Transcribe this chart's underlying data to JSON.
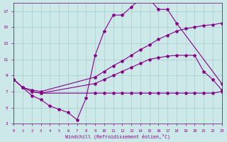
{
  "xlabel": "Windchill (Refroidissement éolien,°C)",
  "bg_color": "#cce8e8",
  "grid_color": "#aacccc",
  "line_color": "#880088",
  "xlim": [
    -0.5,
    23.5
  ],
  "ylim": [
    3,
    18
  ],
  "yticks": [
    3,
    5,
    7,
    9,
    11,
    13,
    15,
    17
  ],
  "line1_x": [
    0,
    1,
    2,
    3,
    4,
    5,
    6,
    7,
    8,
    9,
    10,
    11,
    12,
    13,
    14,
    15,
    16,
    17,
    18,
    23
  ],
  "line1_y": [
    8.5,
    7.5,
    6.5,
    6.0,
    5.2,
    4.8,
    4.4,
    3.5,
    6.2,
    11.5,
    14.5,
    16.5,
    16.5,
    17.5,
    18.5,
    18.5,
    17.2,
    17.2,
    15.5,
    8.0
  ],
  "line2_x": [
    0,
    1,
    2,
    3,
    9,
    10,
    11,
    12,
    13,
    14,
    15,
    16,
    17,
    18,
    19,
    20,
    21,
    22,
    23
  ],
  "line2_y": [
    8.5,
    7.5,
    7.2,
    7.0,
    8.8,
    9.5,
    10.2,
    10.8,
    11.5,
    12.2,
    12.8,
    13.5,
    14.0,
    14.5,
    14.8,
    15.0,
    15.2,
    15.3,
    15.5
  ],
  "line3_x": [
    0,
    1,
    2,
    3,
    9,
    10,
    11,
    12,
    13,
    14,
    15,
    16,
    17,
    18,
    19,
    20,
    21,
    22,
    23
  ],
  "line3_y": [
    8.5,
    7.5,
    7.0,
    6.8,
    8.0,
    8.5,
    9.0,
    9.5,
    10.0,
    10.5,
    11.0,
    11.2,
    11.4,
    11.5,
    11.5,
    11.5,
    9.5,
    8.5,
    7.2
  ],
  "line4_x": [
    2,
    3,
    9,
    10,
    11,
    12,
    13,
    14,
    15,
    16,
    17,
    18,
    19,
    20,
    21,
    22,
    23
  ],
  "line4_y": [
    7.0,
    6.8,
    6.8,
    6.8,
    6.8,
    6.8,
    6.8,
    6.8,
    6.8,
    6.8,
    6.8,
    6.8,
    6.8,
    6.8,
    6.8,
    6.8,
    7.0
  ]
}
